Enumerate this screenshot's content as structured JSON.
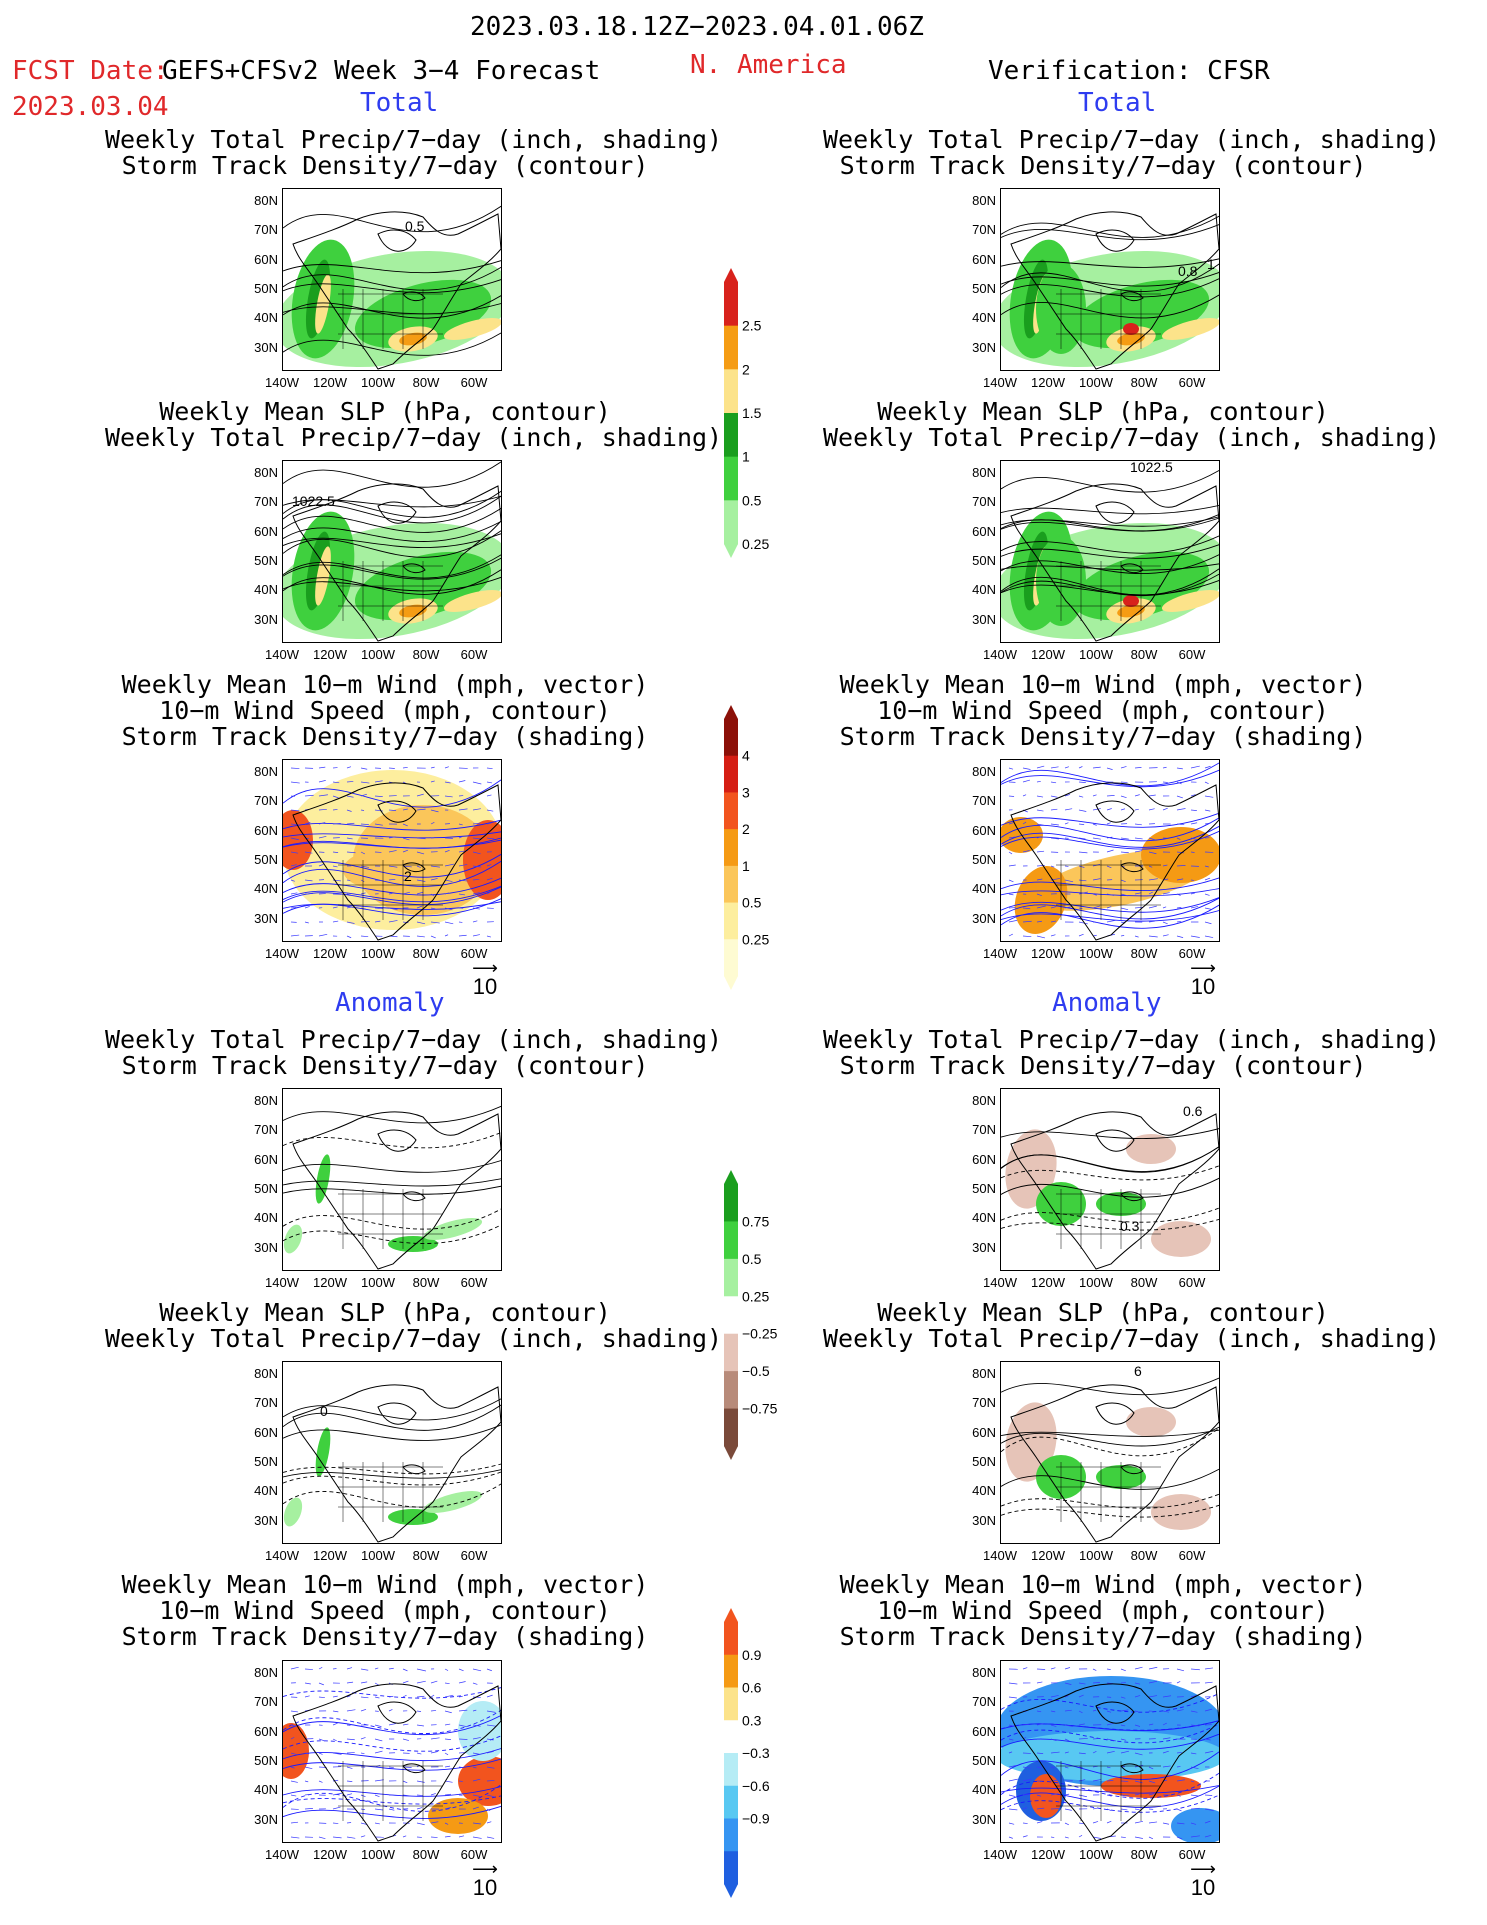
{
  "header": {
    "date_range": "2023.03.18.12Z−2023.04.01.06Z",
    "fcst_label": "FCST Date:",
    "fcst_model": "GEFS+CFSv2 Week 3−4 Forecast",
    "fcst_date": "2023.03.04",
    "region": "N. America",
    "verification": "Verification: CFSR"
  },
  "sections": {
    "total": "Total",
    "anomaly": "Anomaly"
  },
  "captions": {
    "precip_storm": [
      "Weekly Total Precip/7−day (inch, shading)",
      "Storm Track Density/7−day (contour)"
    ],
    "slp_precip": [
      "Weekly Mean SLP (hPa, contour)",
      "Weekly Total Precip/7−day (inch, shading)"
    ],
    "wind_storm": [
      "Weekly Mean 10−m Wind (mph, vector)",
      "10−m Wind Speed (mph, contour)",
      "Storm Track Density/7−day (shading)"
    ]
  },
  "axes": {
    "lat_labels": [
      "80N",
      "70N",
      "60N",
      "50N",
      "40N",
      "30N"
    ],
    "lon_labels": [
      "140W",
      "120W",
      "100W",
      "80W",
      "60W"
    ]
  },
  "vector_ref": "10",
  "contour_labels": {
    "fc_total_precip": "0.5",
    "vf_total_precip_a": "0.8",
    "vf_total_precip_b": "1",
    "fc_total_slp": "1022.5",
    "vf_total_slp": "1022.5",
    "fc_total_wind": "2",
    "vf_anom_precip_a": "0.6",
    "vf_anom_precip_b": "0.3",
    "fc_anom_slp": "0",
    "vf_anom_slp": "6"
  },
  "colorbars": {
    "precip_total": {
      "labels": [
        "2.5",
        "2",
        "1.5",
        "1",
        "0.5",
        "0.25"
      ],
      "colors": [
        "#d8221c",
        "#f59c14",
        "#fce38a",
        "#1a9e1e",
        "#3fd03e",
        "#a6f0a0"
      ]
    },
    "storm_total": {
      "labels": [
        "4",
        "3",
        "2",
        "1",
        "0.5",
        "0.25"
      ],
      "colors": [
        "#8c1008",
        "#d51e14",
        "#f2541e",
        "#f59a14",
        "#fbc65a",
        "#fdee9e",
        "#fefbd2"
      ]
    },
    "precip_anom": {
      "labels": [
        "0.75",
        "0.5",
        "0.25",
        "−0.25",
        "−0.5",
        "−0.75"
      ],
      "colors": [
        "#1a9e1e",
        "#3fd03e",
        "#a6f0a0",
        "#ffffff",
        "#e6c4b8",
        "#b88b7a",
        "#7a4a3a"
      ]
    },
    "storm_anom": {
      "labels": [
        "0.9",
        "0.6",
        "0.3",
        "−0.3",
        "−0.6",
        "−0.9"
      ],
      "colors": [
        "#f2541e",
        "#f59a14",
        "#fce38a",
        "#ffffff",
        "#b5ecf5",
        "#58c8f2",
        "#3595f2",
        "#1f5fe0"
      ]
    }
  }
}
